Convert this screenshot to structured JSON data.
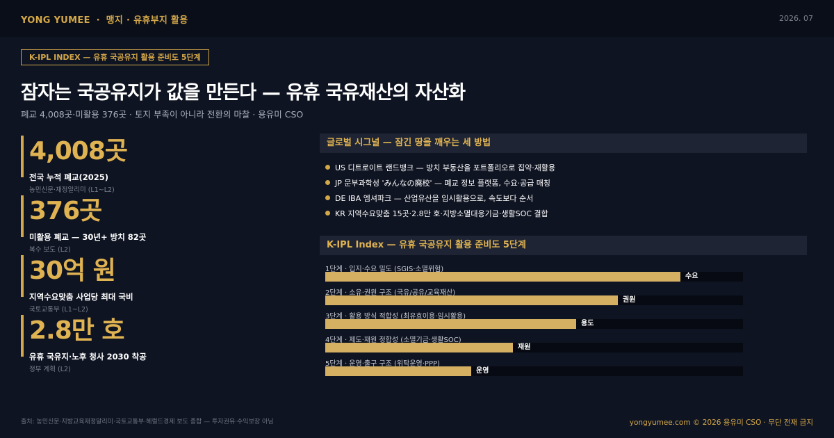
{
  "header": {
    "brand": "YONG YUMEE",
    "separator": "·",
    "section": "맹지 · 유휴부지 활용",
    "date": "2026. 07"
  },
  "badge": "K-IPL INDEX — 유휴 국공유지 활용 준비도 5단계",
  "title": "잠자는 국공유지가 값을 만든다 — 유휴 국유재산의 자산화",
  "subtitle": "폐교 4,008곳·미활용 376곳 · 토지 부족이 아니라 전환의 마찰 · 용유미 CSO",
  "stats": [
    {
      "value": "4,008곳",
      "label": "전국 누적 폐교(2025)",
      "source": "농민신문·재정알리미 (L1~L2)"
    },
    {
      "value": "376곳",
      "label": "미활용 폐교 — 30년+ 방치 82곳",
      "source": "복수 보도 (L2)"
    },
    {
      "value": "30억 원",
      "label": "지역수요맞춤 사업당 최대 국비",
      "source": "국토교통부 (L1~L2)"
    },
    {
      "value": "2.8만 호",
      "label": "유휴 국유지·노후 청사 2030 착공",
      "source": "정부 계획 (L2)"
    }
  ],
  "signals": {
    "heading": "글로벌 시그널 — 잠긴 땅을 깨우는 세 방법",
    "items": [
      "US  디트로이트 랜드뱅크 — 방치 부동산을 포트폴리오로 집약·재활용",
      "JP  문부과학성 'みんなの廃校' — 폐교 정보 플랫폼, 수요·공급 매칭",
      "DE  IBA 엠셔파크 — 산업유산을 임시활용으로, 속도보다 순서",
      "KR  지역수요맞춤 15곳·2.8만 호·지방소멸대응기금·생활SOC 결합"
    ]
  },
  "kipl": {
    "heading": "K-IPL Index — 유휴 국공유지 활용 준비도 5단계",
    "stages": [
      {
        "label": "1단계 · 입지·수요 밀도 (SGIS·소멸위험)",
        "tag": "수요",
        "level": 0.85
      },
      {
        "label": "2단계 · 소유·권원 구조 (국유/공유/교육재산)",
        "tag": "권원",
        "level": 0.7
      },
      {
        "label": "3단계 · 활용 방식 적합성 (최유효이용·임시활용)",
        "tag": "용도",
        "level": 0.6
      },
      {
        "label": "4단계 · 제도·재원 정합성 (소멸기금·생활SOC)",
        "tag": "재원",
        "level": 0.45
      },
      {
        "label": "5단계 · 운영·출구 구조 (위탁운영·PPP)",
        "tag": "운영",
        "level": 0.35
      }
    ]
  },
  "footer": {
    "sources": "출처: 농민신문·지방교육재정알리미·국토교통부·헤럴드경제 보도 종합 — 투자권유·수익보장 아님",
    "copyright": "yongyumee.com  ©  2026 용유미 CSO  ·  무단 전재 금지"
  },
  "colors": {
    "accent": "#d4a849",
    "background": "#0f1422",
    "track": "#070a12"
  }
}
